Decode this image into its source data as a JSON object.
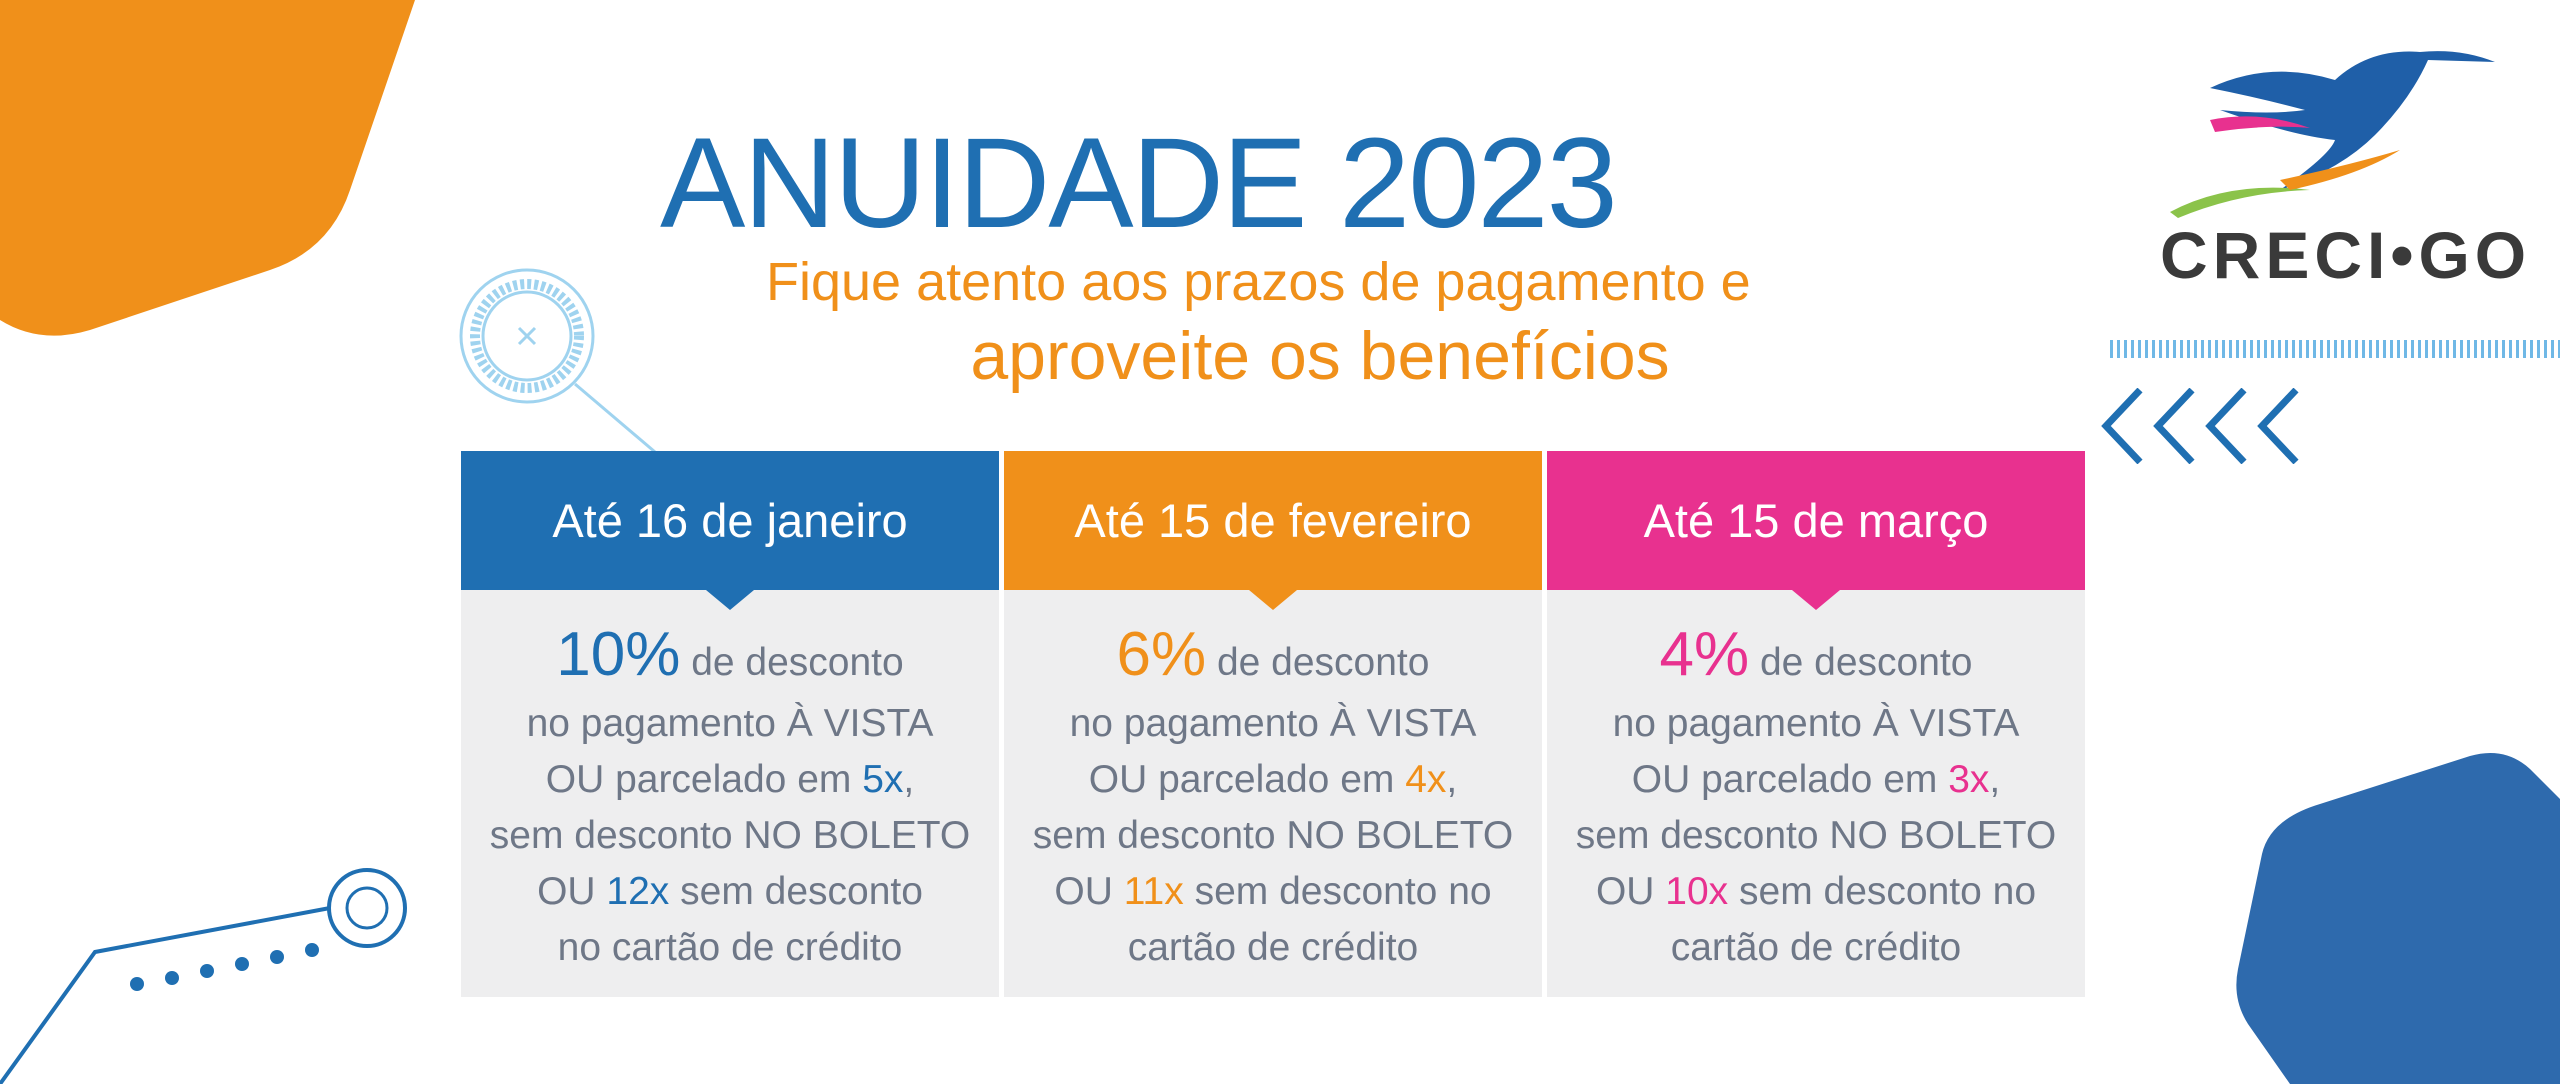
{
  "colors": {
    "blue": "#1f6fb2",
    "orange": "#f0901a",
    "pink": "#e8318f",
    "gray_text": "#6e7787",
    "card_bg": "#eeeeef"
  },
  "header": {
    "title": "ANUIDADE 2023",
    "subtitle_line1": "Fique atento aos prazos de pagamento e",
    "subtitle_line2": "aproveite os benefícios"
  },
  "logo": {
    "text": "CRECI•GO",
    "icon": "hummingbird-icon"
  },
  "cards": [
    {
      "title": "Até 16 de janeiro",
      "color": "#1f6fb2",
      "discount": "10%",
      "discount_suffix": " de desconto",
      "line_cash": "no pagamento À VISTA",
      "installment_prefix": "OU parcelado em ",
      "installments": "5x",
      "installment_suffix": ",",
      "line_boleto": "sem desconto NO BOLETO",
      "card_prefix": "OU ",
      "card_installments": "12x",
      "card_suffix": " sem desconto",
      "card_last": "no cartão de crédito"
    },
    {
      "title": "Até 15 de fevereiro",
      "color": "#f0901a",
      "discount": "6%",
      "discount_suffix": " de desconto",
      "line_cash": "no pagamento À VISTA",
      "installment_prefix": "OU parcelado em ",
      "installments": "4x",
      "installment_suffix": ",",
      "line_boleto": "sem desconto NO BOLETO",
      "card_prefix": "OU ",
      "card_installments": "11x",
      "card_suffix": " sem desconto no",
      "card_last": "cartão de crédito"
    },
    {
      "title": "Até 15 de março",
      "color": "#e8318f",
      "discount": "4%",
      "discount_suffix": " de desconto",
      "line_cash": "no pagamento À VISTA",
      "installment_prefix": "OU parcelado em ",
      "installments": "3x",
      "installment_suffix": ",",
      "line_boleto": "sem desconto NO BOLETO",
      "card_prefix": "OU ",
      "card_installments": "10x",
      "card_suffix": " sem desconto no",
      "card_last": "cartão de crédito"
    }
  ]
}
